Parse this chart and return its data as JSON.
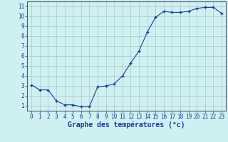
{
  "hours": [
    0,
    1,
    2,
    3,
    4,
    5,
    6,
    7,
    8,
    9,
    10,
    11,
    12,
    13,
    14,
    15,
    16,
    17,
    18,
    19,
    20,
    21,
    22,
    23
  ],
  "temps": [
    3.1,
    2.6,
    2.6,
    1.5,
    1.1,
    1.1,
    0.9,
    0.9,
    2.9,
    3.0,
    3.2,
    4.0,
    5.3,
    6.5,
    8.4,
    9.9,
    10.5,
    10.4,
    10.4,
    10.5,
    10.8,
    10.9,
    10.9,
    10.3
  ],
  "line_color": "#1a3a9a",
  "marker": "+",
  "marker_size": 3.5,
  "bg_color": "#cff0f0",
  "grid_color": "#a8c8c8",
  "axis_label_color": "#1a3a9a",
  "tick_color": "#1a3a9a",
  "xlabel": "Graphe des températures (°c)",
  "ylim": [
    0.5,
    11.5
  ],
  "yticks": [
    1,
    2,
    3,
    4,
    5,
    6,
    7,
    8,
    9,
    10,
    11
  ],
  "xticks": [
    0,
    1,
    2,
    3,
    4,
    5,
    6,
    7,
    8,
    9,
    10,
    11,
    12,
    13,
    14,
    15,
    16,
    17,
    18,
    19,
    20,
    21,
    22,
    23
  ],
  "xlabel_fontsize": 7.0,
  "tick_fontsize": 5.5,
  "spine_color": "#555577"
}
